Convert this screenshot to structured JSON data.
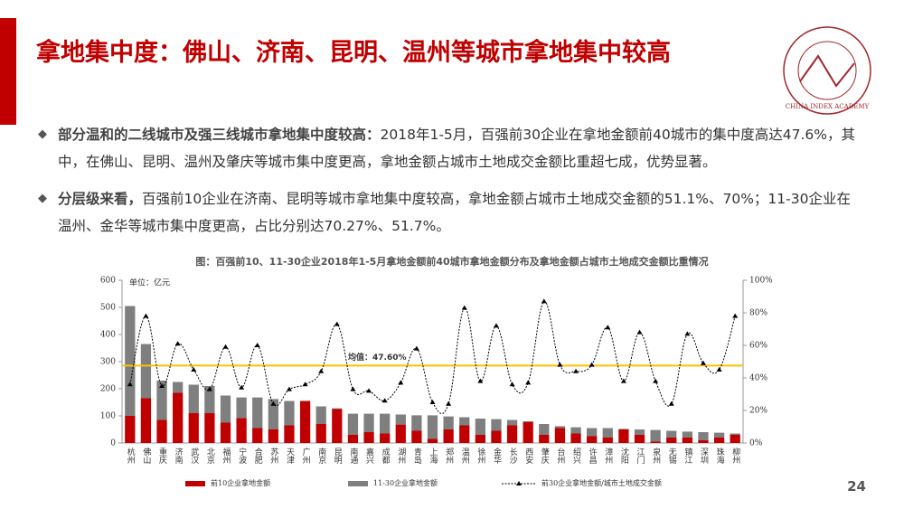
{
  "header": {
    "title": "拿地集中度：佛山、济南、昆明、温州等城市拿地集中较高",
    "logo_text": "CHINA INDEX ACADEMY"
  },
  "bullets": [
    {
      "bold": "部分温和的二线城市及强三线城市拿地集中度较高：",
      "text": "2018年1-5月，百强前30企业在拿地金额前40城市的集中度高达47.6%，其中，在佛山、昆明、温州及肇庆等城市集中度更高，拿地金额占城市土地成交金额比重超七成，优势显著。"
    },
    {
      "bold": "分层级来看，",
      "text": "百强前10企业在济南、昆明等城市拿地集中度较高，拿地金额占城市土地成交金额的51.1%、70%；11-30企业在温州、金华等城市集中度更高，占比分别达70.27%、51.7%。"
    }
  ],
  "page_number": "24",
  "chart_data": {
    "type": "combo",
    "title": "图：百强前10、11-30企业2018年1-5月拿地金额前40城市拿地金额分布及拿地金额占城市土地成交金额比重情况",
    "y_unit": "单位：亿元",
    "categories": [
      "杭州",
      "佛山",
      "重庆",
      "济南",
      "武汉",
      "北京",
      "福州",
      "宁波",
      "合肥",
      "苏州",
      "天津",
      "广州",
      "南京",
      "昆明",
      "南通",
      "嘉兴",
      "成都",
      "湖州",
      "青岛",
      "上海",
      "郑州",
      "温州",
      "徐州",
      "金华",
      "长沙",
      "西安",
      "肇庆",
      "台州",
      "绍兴",
      "许昌",
      "漳州",
      "沈阳",
      "江门",
      "泉州",
      "无锡",
      "镇江",
      "深圳",
      "珠海",
      "柳州"
    ],
    "series": [
      {
        "name": "前10企业拿地金额",
        "color": "#c00000",
        "type": "bar",
        "values": [
          100,
          165,
          85,
          185,
          110,
          110,
          75,
          92,
          55,
          50,
          65,
          155,
          70,
          125,
          30,
          40,
          35,
          68,
          45,
          15,
          50,
          65,
          30,
          45,
          65,
          78,
          30,
          55,
          35,
          25,
          20,
          50,
          30,
          5,
          20,
          20,
          10,
          20,
          30
        ]
      },
      {
        "name": "11-30企业拿地金额",
        "color": "#7f7f7f",
        "type": "bar",
        "values": [
          405,
          200,
          145,
          40,
          105,
          100,
          100,
          76,
          113,
          112,
          90,
          0,
          65,
          3,
          78,
          68,
          73,
          37,
          57,
          87,
          48,
          30,
          60,
          43,
          20,
          2,
          40,
          7,
          23,
          30,
          35,
          2,
          20,
          43,
          25,
          22,
          30,
          18,
          5
        ]
      },
      {
        "name": "前30企业拿地金额/城市土地成交金额",
        "color": "#000000",
        "type": "line",
        "axis": "y2",
        "values": [
          36,
          78,
          35,
          61,
          45,
          33,
          59,
          34,
          60,
          24,
          33,
          36,
          44,
          73,
          33,
          32,
          26,
          37,
          58,
          25,
          24,
          83,
          38,
          72,
          36,
          37,
          87,
          48,
          44,
          48,
          71,
          38,
          68,
          38,
          24,
          67,
          49,
          45,
          78
        ]
      }
    ],
    "mean": {
      "value": 47.6,
      "label": "均值：47.60%",
      "color": "#ffc000"
    },
    "ylim": [
      0,
      600
    ],
    "yticks": [
      0,
      100,
      200,
      300,
      400,
      500,
      600
    ],
    "y2lim": [
      0,
      100
    ],
    "y2ticks": [
      {
        "value": 0,
        "label": "0%"
      },
      {
        "value": 20,
        "label": "20%"
      },
      {
        "value": 40,
        "label": "40%"
      },
      {
        "value": 60,
        "label": "60%"
      },
      {
        "value": 80,
        "label": "80%"
      },
      {
        "value": 100,
        "label": "100%"
      }
    ]
  }
}
